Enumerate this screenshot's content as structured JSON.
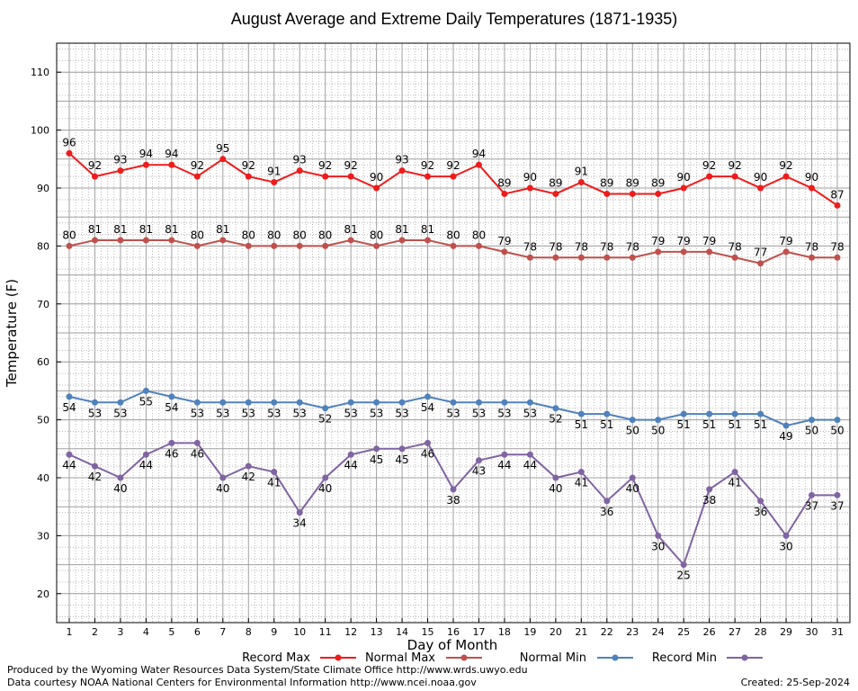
{
  "chart_data": {
    "type": "line",
    "title": "August Average and Extreme Daily Temperatures (1871-1935)",
    "xlabel": "Day of Month",
    "ylabel": "Temperature (F)",
    "categories": [
      "1",
      "2",
      "3",
      "4",
      "5",
      "6",
      "7",
      "8",
      "9",
      "10",
      "11",
      "12",
      "13",
      "14",
      "15",
      "16",
      "17",
      "18",
      "19",
      "20",
      "21",
      "22",
      "23",
      "24",
      "25",
      "26",
      "27",
      "28",
      "29",
      "30",
      "31"
    ],
    "ylim": [
      15,
      115
    ],
    "yticks": [
      20,
      30,
      40,
      50,
      60,
      70,
      80,
      90,
      100,
      110
    ],
    "grid": true,
    "legend_position": "bottom",
    "series": [
      {
        "name": "Record Max",
        "color": "#ee1c1c",
        "label_position": "above",
        "values": [
          96,
          92,
          93,
          94,
          94,
          92,
          95,
          92,
          91,
          93,
          92,
          92,
          90,
          93,
          92,
          92,
          94,
          89,
          90,
          89,
          91,
          89,
          89,
          89,
          90,
          92,
          92,
          90,
          92,
          90,
          87
        ]
      },
      {
        "name": "Normal Max",
        "color": "#c0504d",
        "label_position": "above",
        "values": [
          80,
          81,
          81,
          81,
          81,
          80,
          81,
          80,
          80,
          80,
          80,
          81,
          80,
          81,
          81,
          80,
          80,
          79,
          78,
          78,
          78,
          78,
          78,
          79,
          79,
          79,
          78,
          77,
          79,
          78,
          78
        ]
      },
      {
        "name": "Normal Min",
        "color": "#4f81bd",
        "label_position": "below",
        "values": [
          54,
          53,
          53,
          55,
          54,
          53,
          53,
          53,
          53,
          53,
          52,
          53,
          53,
          53,
          54,
          53,
          53,
          53,
          53,
          52,
          51,
          51,
          50,
          50,
          51,
          51,
          51,
          51,
          49,
          50,
          50
        ]
      },
      {
        "name": "Record Min",
        "color": "#8064a2",
        "label_position": "below",
        "values": [
          44,
          42,
          40,
          44,
          46,
          46,
          40,
          42,
          41,
          34,
          40,
          44,
          45,
          45,
          46,
          38,
          43,
          44,
          44,
          40,
          41,
          36,
          40,
          30,
          25,
          38,
          41,
          36,
          30,
          37,
          37
        ]
      }
    ]
  },
  "footer": {
    "produced_by": "Produced by the Wyoming Water Resources Data System/State Climate Office http://www.wrds.uwyo.edu",
    "data_courtesy": "Data courtesy NOAA National Centers for Environmental Information http://www.ncei.noaa.gov",
    "created": "Created:  25-Sep-2024"
  }
}
